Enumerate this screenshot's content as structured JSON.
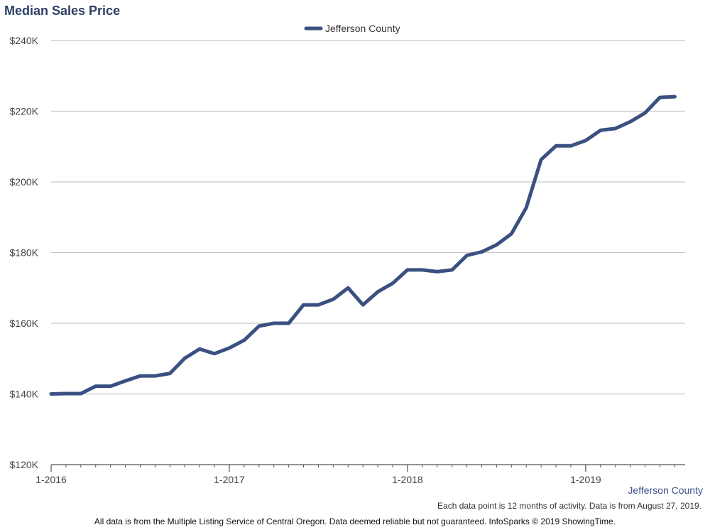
{
  "chart_data": {
    "type": "line",
    "title": "Median Sales Price",
    "legend": {
      "position": "top-center",
      "entries": [
        "Jefferson County"
      ]
    },
    "series": [
      {
        "name": "Jefferson County",
        "color": "#3a5080",
        "x": [
          "1-2016",
          "2-2016",
          "3-2016",
          "4-2016",
          "5-2016",
          "6-2016",
          "7-2016",
          "8-2016",
          "9-2016",
          "10-2016",
          "11-2016",
          "12-2016",
          "1-2017",
          "2-2017",
          "3-2017",
          "4-2017",
          "5-2017",
          "6-2017",
          "7-2017",
          "8-2017",
          "9-2017",
          "10-2017",
          "11-2017",
          "12-2017",
          "1-2018",
          "2-2018",
          "3-2018",
          "4-2018",
          "5-2018",
          "6-2018",
          "7-2018",
          "8-2018",
          "9-2018",
          "10-2018",
          "11-2018",
          "12-2018",
          "1-2019",
          "2-2019",
          "3-2019",
          "4-2019",
          "5-2019",
          "6-2019",
          "7-2019"
        ],
        "values": [
          140000,
          140100,
          140100,
          142200,
          142200,
          143700,
          145100,
          145100,
          145800,
          150100,
          152700,
          151400,
          153000,
          155200,
          159200,
          160000,
          160000,
          165200,
          165200,
          166800,
          170000,
          165200,
          168900,
          171300,
          175100,
          175100,
          174600,
          175100,
          179200,
          180200,
          182200,
          185300,
          192700,
          206300,
          210200,
          210200,
          211700,
          214600,
          215100,
          217000,
          219500,
          223900,
          224100
        ]
      }
    ],
    "x_ticks": [
      "1-2016",
      "1-2017",
      "1-2018",
      "1-2019"
    ],
    "y_ticks": [
      "$120K",
      "$140K",
      "$160K",
      "$180K",
      "$200K",
      "$220K",
      "$240K"
    ],
    "ylim": [
      120000,
      240000
    ],
    "grid": true
  },
  "series_tag": "Jefferson County",
  "note": "Each data point is 12 months of activity. Data is from August 27, 2019.",
  "footer": "All data is from the Multiple Listing Service of Central Oregon. Data deemed reliable but not guaranteed. InfoSparks © 2019 ShowingTime."
}
